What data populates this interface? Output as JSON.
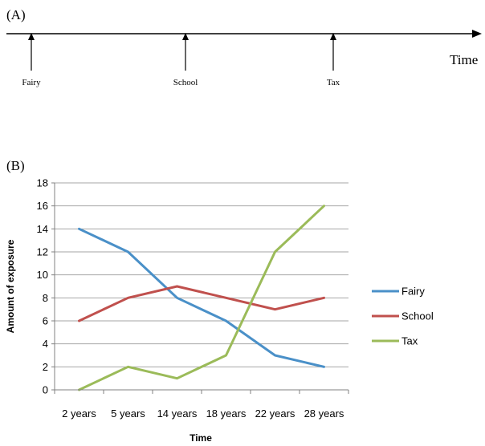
{
  "panel_a": {
    "label": "(A)",
    "axis_label": "Time",
    "events": [
      "Fairy",
      "School",
      "Tax"
    ]
  },
  "chart_data": {
    "type": "line",
    "panel_label": "(B)",
    "categories": [
      "2 years",
      "5 years",
      "14 years",
      "18 years",
      "22 years",
      "28 years"
    ],
    "series": [
      {
        "name": "Fairy",
        "color": "#4a90c8",
        "values": [
          14,
          12,
          8,
          6,
          3,
          2
        ]
      },
      {
        "name": "School",
        "color": "#c0504d",
        "values": [
          6,
          8,
          9,
          8,
          7,
          8
        ]
      },
      {
        "name": "Tax",
        "color": "#9bbb59",
        "values": [
          0,
          2,
          1,
          3,
          12,
          16
        ]
      }
    ],
    "xlabel": "Time",
    "ylabel": "Amount of exposure",
    "ylim": [
      0,
      18
    ],
    "yticks": [
      0,
      2,
      4,
      6,
      8,
      10,
      12,
      14,
      16,
      18
    ],
    "grid": true,
    "legend": "right"
  }
}
